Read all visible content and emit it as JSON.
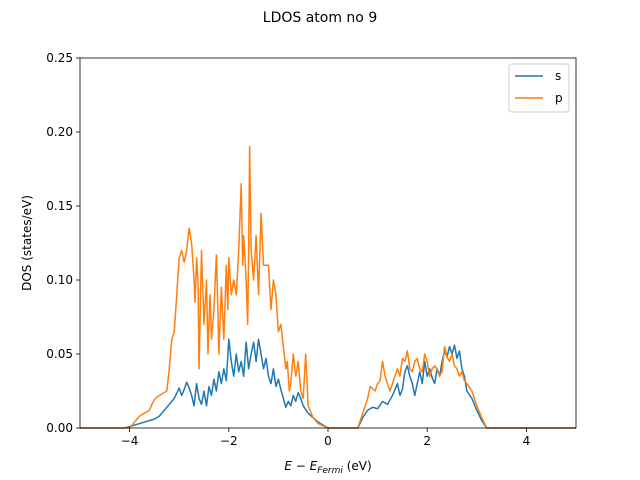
{
  "chart_data": {
    "type": "line",
    "title": "LDOS atom no 9",
    "xlabel_main": "E − E",
    "xlabel_sub": "Fermi",
    "xlabel_unit": " (eV)",
    "ylabel": "DOS (states/eV)",
    "xlim": [
      -5,
      5
    ],
    "ylim": [
      0,
      0.25
    ],
    "xticks": [
      -4,
      -2,
      0,
      2,
      4
    ],
    "xtick_labels": [
      "−4",
      "−2",
      "0",
      "2",
      "4"
    ],
    "yticks": [
      0,
      0.05,
      0.1,
      0.15,
      0.2,
      0.25
    ],
    "ytick_labels": [
      "0.00",
      "0.05",
      "0.10",
      "0.15",
      "0.20",
      "0.25"
    ],
    "grid": false,
    "legend_position": "top-right",
    "series": [
      {
        "name": "s",
        "color": "#1f77b4",
        "points": [
          [
            -5.0,
            0.0
          ],
          [
            -4.1,
            0.0
          ],
          [
            -3.9,
            0.002
          ],
          [
            -3.7,
            0.004
          ],
          [
            -3.5,
            0.006
          ],
          [
            -3.4,
            0.008
          ],
          [
            -3.3,
            0.012
          ],
          [
            -3.2,
            0.016
          ],
          [
            -3.1,
            0.02
          ],
          [
            -3.0,
            0.027
          ],
          [
            -2.95,
            0.022
          ],
          [
            -2.9,
            0.026
          ],
          [
            -2.85,
            0.031
          ],
          [
            -2.8,
            0.027
          ],
          [
            -2.75,
            0.022
          ],
          [
            -2.7,
            0.015
          ],
          [
            -2.65,
            0.03
          ],
          [
            -2.6,
            0.02
          ],
          [
            -2.55,
            0.016
          ],
          [
            -2.5,
            0.025
          ],
          [
            -2.45,
            0.015
          ],
          [
            -2.4,
            0.028
          ],
          [
            -2.35,
            0.022
          ],
          [
            -2.3,
            0.033
          ],
          [
            -2.25,
            0.025
          ],
          [
            -2.2,
            0.038
          ],
          [
            -2.15,
            0.03
          ],
          [
            -2.1,
            0.04
          ],
          [
            -2.05,
            0.032
          ],
          [
            -2.0,
            0.06
          ],
          [
            -1.95,
            0.045
          ],
          [
            -1.9,
            0.035
          ],
          [
            -1.85,
            0.05
          ],
          [
            -1.8,
            0.038
          ],
          [
            -1.75,
            0.045
          ],
          [
            -1.7,
            0.035
          ],
          [
            -1.65,
            0.058
          ],
          [
            -1.6,
            0.04
          ],
          [
            -1.55,
            0.05
          ],
          [
            -1.5,
            0.058
          ],
          [
            -1.45,
            0.045
          ],
          [
            -1.4,
            0.06
          ],
          [
            -1.35,
            0.05
          ],
          [
            -1.3,
            0.04
          ],
          [
            -1.25,
            0.047
          ],
          [
            -1.2,
            0.035
          ],
          [
            -1.15,
            0.03
          ],
          [
            -1.1,
            0.04
          ],
          [
            -1.05,
            0.028
          ],
          [
            -1.0,
            0.033
          ],
          [
            -0.95,
            0.026
          ],
          [
            -0.9,
            0.02
          ],
          [
            -0.85,
            0.014
          ],
          [
            -0.8,
            0.018
          ],
          [
            -0.75,
            0.015
          ],
          [
            -0.7,
            0.022
          ],
          [
            -0.65,
            0.018
          ],
          [
            -0.6,
            0.024
          ],
          [
            -0.55,
            0.02
          ],
          [
            -0.5,
            0.015
          ],
          [
            -0.4,
            0.01
          ],
          [
            -0.3,
            0.007
          ],
          [
            -0.2,
            0.004
          ],
          [
            -0.1,
            0.002
          ],
          [
            0.0,
            0.0
          ],
          [
            0.6,
            0.0
          ],
          [
            0.7,
            0.007
          ],
          [
            0.8,
            0.012
          ],
          [
            0.9,
            0.014
          ],
          [
            1.0,
            0.013
          ],
          [
            1.1,
            0.018
          ],
          [
            1.2,
            0.016
          ],
          [
            1.3,
            0.022
          ],
          [
            1.4,
            0.03
          ],
          [
            1.45,
            0.022
          ],
          [
            1.5,
            0.026
          ],
          [
            1.55,
            0.038
          ],
          [
            1.6,
            0.042
          ],
          [
            1.65,
            0.035
          ],
          [
            1.7,
            0.03
          ],
          [
            1.75,
            0.022
          ],
          [
            1.8,
            0.03
          ],
          [
            1.85,
            0.038
          ],
          [
            1.9,
            0.03
          ],
          [
            1.95,
            0.045
          ],
          [
            2.0,
            0.035
          ],
          [
            2.05,
            0.04
          ],
          [
            2.1,
            0.034
          ],
          [
            2.15,
            0.03
          ],
          [
            2.2,
            0.04
          ],
          [
            2.25,
            0.035
          ],
          [
            2.3,
            0.045
          ],
          [
            2.35,
            0.052
          ],
          [
            2.4,
            0.048
          ],
          [
            2.45,
            0.055
          ],
          [
            2.5,
            0.05
          ],
          [
            2.55,
            0.056
          ],
          [
            2.6,
            0.047
          ],
          [
            2.65,
            0.052
          ],
          [
            2.7,
            0.04
          ],
          [
            2.75,
            0.035
          ],
          [
            2.8,
            0.025
          ],
          [
            2.9,
            0.02
          ],
          [
            3.0,
            0.012
          ],
          [
            3.1,
            0.005
          ],
          [
            3.2,
            0.0
          ],
          [
            5.0,
            0.0
          ]
        ]
      },
      {
        "name": "p",
        "color": "#ff7f0e",
        "points": [
          [
            -5.0,
            0.0
          ],
          [
            -4.0,
            0.0
          ],
          [
            -3.9,
            0.004
          ],
          [
            -3.8,
            0.008
          ],
          [
            -3.7,
            0.01
          ],
          [
            -3.6,
            0.012
          ],
          [
            -3.55,
            0.016
          ],
          [
            -3.5,
            0.019
          ],
          [
            -3.45,
            0.021
          ],
          [
            -3.35,
            0.023
          ],
          [
            -3.25,
            0.025
          ],
          [
            -3.2,
            0.04
          ],
          [
            -3.15,
            0.06
          ],
          [
            -3.1,
            0.065
          ],
          [
            -3.05,
            0.09
          ],
          [
            -3.0,
            0.115
          ],
          [
            -2.95,
            0.12
          ],
          [
            -2.9,
            0.112
          ],
          [
            -2.85,
            0.12
          ],
          [
            -2.8,
            0.135
          ],
          [
            -2.75,
            0.125
          ],
          [
            -2.7,
            0.1
          ],
          [
            -2.68,
            0.085
          ],
          [
            -2.65,
            0.115
          ],
          [
            -2.62,
            0.098
          ],
          [
            -2.6,
            0.04
          ],
          [
            -2.55,
            0.12
          ],
          [
            -2.5,
            0.07
          ],
          [
            -2.45,
            0.1
          ],
          [
            -2.42,
            0.05
          ],
          [
            -2.38,
            0.09
          ],
          [
            -2.35,
            0.06
          ],
          [
            -2.3,
            0.08
          ],
          [
            -2.25,
            0.117
          ],
          [
            -2.22,
            0.08
          ],
          [
            -2.2,
            0.05
          ],
          [
            -2.15,
            0.095
          ],
          [
            -2.1,
            0.06
          ],
          [
            -2.05,
            0.11
          ],
          [
            -2.02,
            0.08
          ],
          [
            -2.0,
            0.115
          ],
          [
            -1.95,
            0.09
          ],
          [
            -1.9,
            0.1
          ],
          [
            -1.85,
            0.09
          ],
          [
            -1.8,
            0.12
          ],
          [
            -1.75,
            0.165
          ],
          [
            -1.72,
            0.11
          ],
          [
            -1.7,
            0.13
          ],
          [
            -1.65,
            0.1
          ],
          [
            -1.62,
            0.07
          ],
          [
            -1.6,
            0.12
          ],
          [
            -1.58,
            0.19
          ],
          [
            -1.55,
            0.12
          ],
          [
            -1.5,
            0.1
          ],
          [
            -1.45,
            0.13
          ],
          [
            -1.4,
            0.09
          ],
          [
            -1.35,
            0.145
          ],
          [
            -1.3,
            0.11
          ],
          [
            -1.25,
            0.11
          ],
          [
            -1.2,
            0.11
          ],
          [
            -1.15,
            0.08
          ],
          [
            -1.1,
            0.1
          ],
          [
            -1.05,
            0.09
          ],
          [
            -1.0,
            0.065
          ],
          [
            -0.95,
            0.07
          ],
          [
            -0.9,
            0.055
          ],
          [
            -0.85,
            0.04
          ],
          [
            -0.82,
            0.045
          ],
          [
            -0.78,
            0.025
          ],
          [
            -0.75,
            0.03
          ],
          [
            -0.7,
            0.05
          ],
          [
            -0.65,
            0.035
          ],
          [
            -0.6,
            0.045
          ],
          [
            -0.55,
            0.025
          ],
          [
            -0.5,
            0.02
          ],
          [
            -0.45,
            0.05
          ],
          [
            -0.4,
            0.015
          ],
          [
            -0.3,
            0.007
          ],
          [
            -0.2,
            0.003
          ],
          [
            0.0,
            0.0
          ],
          [
            0.6,
            0.0
          ],
          [
            0.7,
            0.01
          ],
          [
            0.8,
            0.02
          ],
          [
            0.85,
            0.028
          ],
          [
            0.95,
            0.025
          ],
          [
            1.0,
            0.03
          ],
          [
            1.05,
            0.032
          ],
          [
            1.1,
            0.045
          ],
          [
            1.15,
            0.035
          ],
          [
            1.2,
            0.03
          ],
          [
            1.25,
            0.025
          ],
          [
            1.3,
            0.03
          ],
          [
            1.4,
            0.04
          ],
          [
            1.45,
            0.035
          ],
          [
            1.5,
            0.047
          ],
          [
            1.55,
            0.045
          ],
          [
            1.6,
            0.052
          ],
          [
            1.65,
            0.04
          ],
          [
            1.7,
            0.038
          ],
          [
            1.75,
            0.045
          ],
          [
            1.8,
            0.047
          ],
          [
            1.85,
            0.04
          ],
          [
            1.9,
            0.038
          ],
          [
            1.95,
            0.05
          ],
          [
            2.0,
            0.045
          ],
          [
            2.05,
            0.035
          ],
          [
            2.1,
            0.04
          ],
          [
            2.15,
            0.042
          ],
          [
            2.2,
            0.04
          ],
          [
            2.25,
            0.035
          ],
          [
            2.3,
            0.038
          ],
          [
            2.35,
            0.055
          ],
          [
            2.4,
            0.048
          ],
          [
            2.45,
            0.045
          ],
          [
            2.5,
            0.05
          ],
          [
            2.55,
            0.042
          ],
          [
            2.6,
            0.04
          ],
          [
            2.65,
            0.035
          ],
          [
            2.7,
            0.038
          ],
          [
            2.75,
            0.032
          ],
          [
            2.8,
            0.03
          ],
          [
            2.9,
            0.025
          ],
          [
            3.0,
            0.015
          ],
          [
            3.1,
            0.007
          ],
          [
            3.2,
            0.0
          ],
          [
            5.0,
            0.0
          ]
        ]
      }
    ]
  }
}
